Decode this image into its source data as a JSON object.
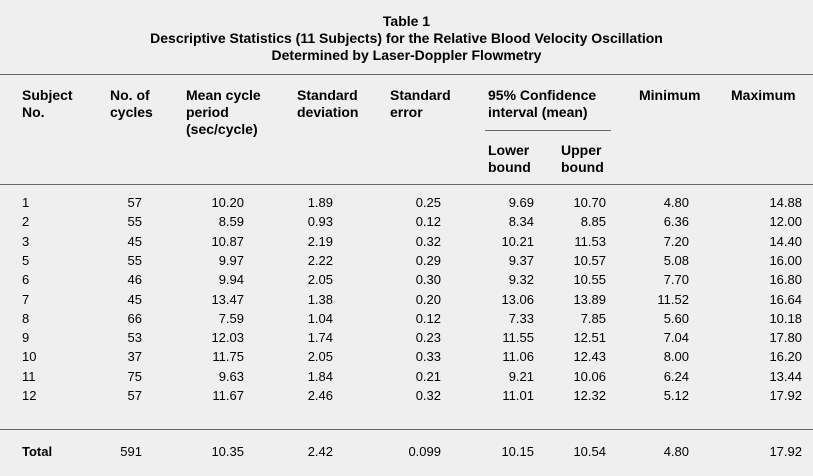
{
  "title": {
    "line1": "Table 1",
    "line2": "Descriptive Statistics (11 Subjects) for the Relative Blood Velocity Oscillation",
    "line3": "Determined by Laser-Doppler Flowmetry"
  },
  "headers": {
    "subject": "Subject\nNo.",
    "cycles": "No. of\ncycles",
    "mean": "Mean cycle\nperiod\n(sec/cycle)",
    "sd": "Standard\ndeviation",
    "se": "Standard\nerror",
    "ci": "95% Confidence\ninterval (mean)",
    "lower": "Lower\nbound",
    "upper": "Upper\nbound",
    "min": "Minimum",
    "max": "Maximum"
  },
  "rows": [
    {
      "subject": "1",
      "cycles": "57",
      "mean": "10.20",
      "sd": "1.89",
      "se": "0.25",
      "lower": "9.69",
      "upper": "10.70",
      "min": "4.80",
      "max": "14.88"
    },
    {
      "subject": "2",
      "cycles": "55",
      "mean": "8.59",
      "sd": "0.93",
      "se": "0.12",
      "lower": "8.34",
      "upper": "8.85",
      "min": "6.36",
      "max": "12.00"
    },
    {
      "subject": "3",
      "cycles": "45",
      "mean": "10.87",
      "sd": "2.19",
      "se": "0.32",
      "lower": "10.21",
      "upper": "11.53",
      "min": "7.20",
      "max": "14.40"
    },
    {
      "subject": "5",
      "cycles": "55",
      "mean": "9.97",
      "sd": "2.22",
      "se": "0.29",
      "lower": "9.37",
      "upper": "10.57",
      "min": "5.08",
      "max": "16.00"
    },
    {
      "subject": "6",
      "cycles": "46",
      "mean": "9.94",
      "sd": "2.05",
      "se": "0.30",
      "lower": "9.32",
      "upper": "10.55",
      "min": "7.70",
      "max": "16.80"
    },
    {
      "subject": "7",
      "cycles": "45",
      "mean": "13.47",
      "sd": "1.38",
      "se": "0.20",
      "lower": "13.06",
      "upper": "13.89",
      "min": "11.52",
      "max": "16.64"
    },
    {
      "subject": "8",
      "cycles": "66",
      "mean": "7.59",
      "sd": "1.04",
      "se": "0.12",
      "lower": "7.33",
      "upper": "7.85",
      "min": "5.60",
      "max": "10.18"
    },
    {
      "subject": "9",
      "cycles": "53",
      "mean": "12.03",
      "sd": "1.74",
      "se": "0.23",
      "lower": "11.55",
      "upper": "12.51",
      "min": "7.04",
      "max": "17.80"
    },
    {
      "subject": "10",
      "cycles": "37",
      "mean": "11.75",
      "sd": "2.05",
      "se": "0.33",
      "lower": "11.06",
      "upper": "12.43",
      "min": "8.00",
      "max": "16.20"
    },
    {
      "subject": "11",
      "cycles": "75",
      "mean": "9.63",
      "sd": "1.84",
      "se": "0.21",
      "lower": "9.21",
      "upper": "10.06",
      "min": "6.24",
      "max": "13.44"
    },
    {
      "subject": "12",
      "cycles": "57",
      "mean": "11.67",
      "sd": "2.46",
      "se": "0.32",
      "lower": "11.01",
      "upper": "12.32",
      "min": "5.12",
      "max": "17.92"
    }
  ],
  "total": {
    "subject": "Total",
    "cycles": "591",
    "mean": "10.35",
    "sd": "2.42",
    "se": "0.099",
    "lower": "10.15",
    "upper": "10.54",
    "min": "4.80",
    "max": "17.92"
  }
}
